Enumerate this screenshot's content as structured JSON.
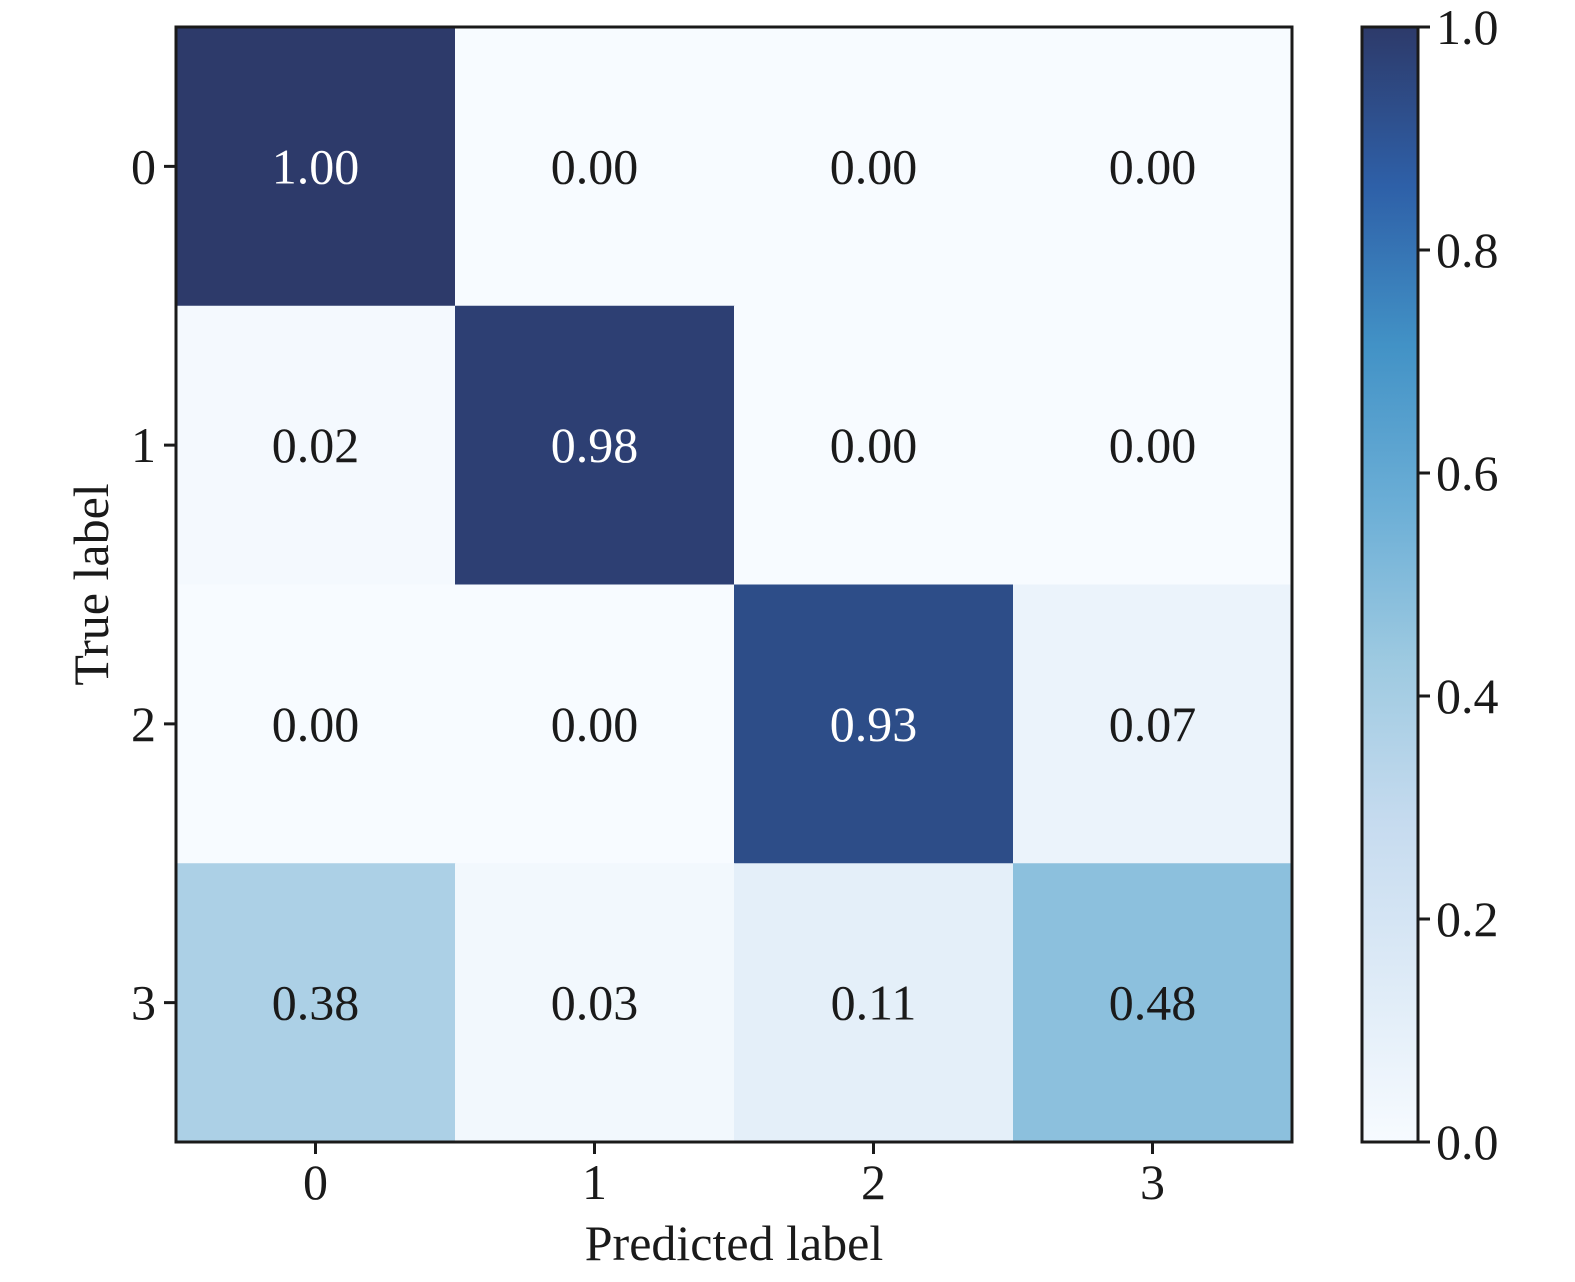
{
  "chart_data": {
    "type": "heatmap",
    "title": "",
    "xlabel": "Predicted label",
    "ylabel": "True label",
    "x_categories": [
      "0",
      "1",
      "2",
      "3"
    ],
    "y_categories": [
      "0",
      "1",
      "2",
      "3"
    ],
    "values": [
      [
        1.0,
        0.0,
        0.0,
        0.0
      ],
      [
        0.02,
        0.98,
        0.0,
        0.0
      ],
      [
        0.0,
        0.0,
        0.93,
        0.07
      ],
      [
        0.38,
        0.03,
        0.11,
        0.48
      ]
    ],
    "cell_labels": [
      [
        "1.00",
        "0.00",
        "0.00",
        "0.00"
      ],
      [
        "0.02",
        "0.98",
        "0.00",
        "0.00"
      ],
      [
        "0.00",
        "0.00",
        "0.93",
        "0.07"
      ],
      [
        "0.38",
        "0.03",
        "0.11",
        "0.48"
      ]
    ],
    "colorbar": {
      "range": [
        0.0,
        1.0
      ],
      "ticks": [
        "0.0",
        "0.2",
        "0.4",
        "0.6",
        "0.8",
        "1.0"
      ],
      "colormap": "Blues",
      "colormap_stops": [
        "#f7fbff",
        "#deebf7",
        "#c6dbef",
        "#9ecae1",
        "#6baed6",
        "#4292c6",
        "#2e60a8",
        "#2d3a6a"
      ]
    },
    "text_colors": {
      "dark": "#1a1a1a",
      "light": "#ffffff"
    },
    "grid": false
  }
}
